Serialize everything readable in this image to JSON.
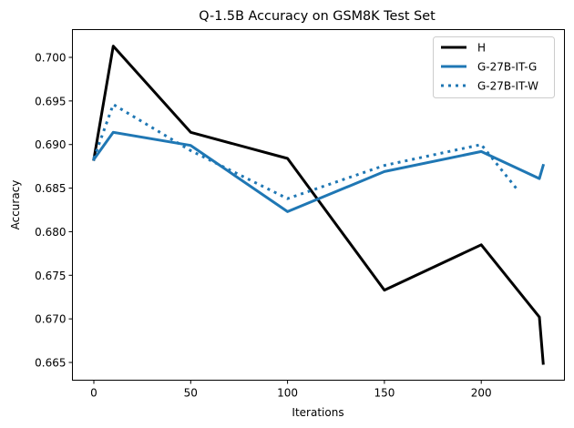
{
  "chart_data": {
    "type": "line",
    "title": "Q-1.5B Accuracy on GSM8K Test Set",
    "xlabel": "Iterations",
    "ylabel": "Accuracy",
    "xlim": [
      -11,
      243
    ],
    "ylim": [
      0.6632,
      0.703
    ],
    "x_ticks": [
      0,
      50,
      100,
      150,
      200
    ],
    "y_ticks": [
      0.665,
      0.67,
      0.675,
      0.68,
      0.685,
      0.69,
      0.695,
      0.7
    ],
    "x_tick_labels": [
      "0",
      "50",
      "100",
      "150",
      "200"
    ],
    "y_tick_labels": [
      "0.665",
      "0.670",
      "0.675",
      "0.680",
      "0.685",
      "0.690",
      "0.695",
      "0.700"
    ],
    "grid": false,
    "legend_position": "upper right",
    "series": [
      {
        "name": "H",
        "color": "#000000",
        "style": "solid",
        "x": [
          0,
          10,
          50,
          100,
          150,
          200,
          230,
          232
        ],
        "values": [
          0.6883,
          0.7013,
          0.6914,
          0.6884,
          0.6733,
          0.6785,
          0.6702,
          0.6649
        ]
      },
      {
        "name": "G-27B-IT-G",
        "color": "#1f77b4",
        "style": "solid",
        "x": [
          0,
          10,
          50,
          100,
          150,
          200,
          230,
          232
        ],
        "values": [
          0.6883,
          0.6914,
          0.6899,
          0.6823,
          0.6869,
          0.6892,
          0.6861,
          0.6876
        ]
      },
      {
        "name": "G-27B-IT-W",
        "color": "#1f77b4",
        "style": "dotted",
        "x": [
          0,
          10,
          50,
          100,
          150,
          200,
          218
        ],
        "values": [
          0.6884,
          0.6946,
          0.6893,
          0.6838,
          0.6876,
          0.69,
          0.685
        ]
      }
    ]
  }
}
